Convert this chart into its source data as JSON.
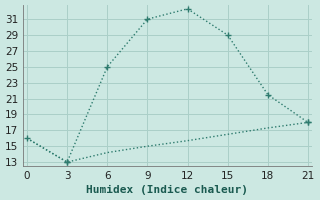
{
  "xlabel": "Humidex (Indice chaleur)",
  "background_color": "#cce8e2",
  "grid_color": "#aacfc8",
  "line_color": "#2e7b6e",
  "x_line1": [
    0,
    3,
    6,
    9,
    12,
    15,
    18,
    21
  ],
  "y_line1": [
    16,
    13,
    25,
    31,
    32.3,
    29,
    21.5,
    18
  ],
  "x_line2": [
    0,
    3,
    6,
    9,
    12,
    15,
    18,
    21
  ],
  "y_line2": [
    16,
    13,
    14.2,
    15.0,
    15.7,
    16.5,
    17.3,
    18
  ],
  "xlim": [
    -0.3,
    21.3
  ],
  "ylim": [
    12.5,
    32.8
  ],
  "xticks": [
    0,
    3,
    6,
    9,
    12,
    15,
    18,
    21
  ],
  "yticks": [
    13,
    15,
    17,
    19,
    21,
    23,
    25,
    27,
    29,
    31
  ],
  "xlabel_fontsize": 8,
  "tick_fontsize": 7.5
}
